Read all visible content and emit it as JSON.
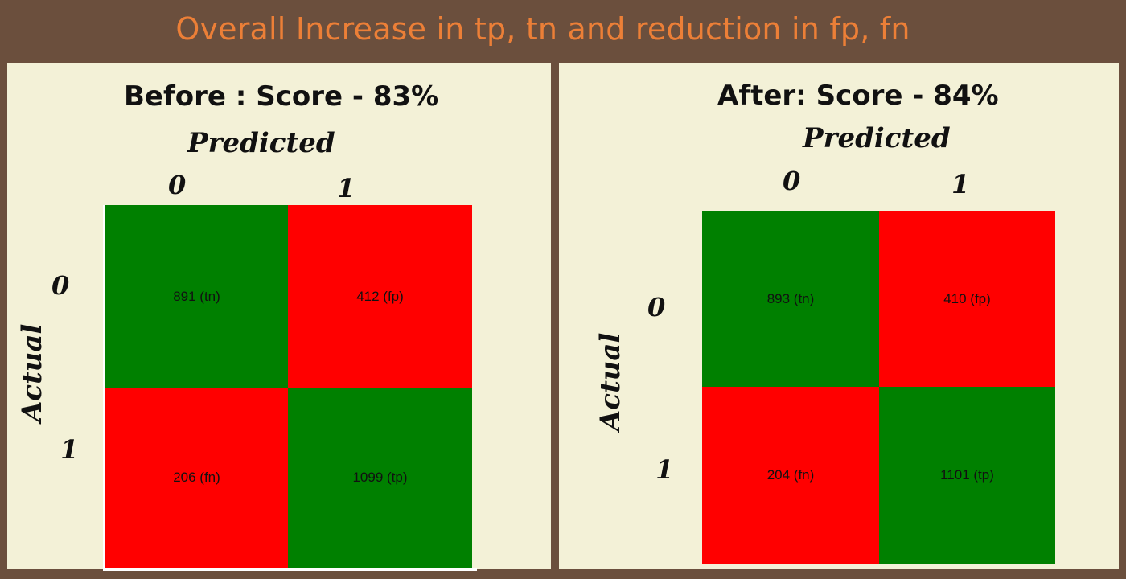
{
  "title": "Overall Increase in tp, tn and reduction in fp, fn",
  "colors": {
    "background": "#6b4f3d",
    "title": "#ec7f37",
    "panel": "#f3f1d7",
    "correct": "#008000",
    "incorrect": "#ff0000"
  },
  "chart_data": [
    {
      "type": "heatmap",
      "title": "Before : Score - 83%",
      "xlabel": "Predicted",
      "ylabel": "Actual",
      "x_ticks": [
        "0",
        "1"
      ],
      "y_ticks": [
        "0",
        "1"
      ],
      "cells": [
        [
          "891 (tn)",
          "412 (fp)"
        ],
        [
          "206 (fn)",
          "1099 (tp)"
        ]
      ],
      "values": [
        [
          891,
          412
        ],
        [
          206,
          1099
        ]
      ],
      "cell_colors": [
        [
          "#008000",
          "#ff0000"
        ],
        [
          "#ff0000",
          "#008000"
        ]
      ]
    },
    {
      "type": "heatmap",
      "title": "After: Score - 84%",
      "xlabel": "Predicted",
      "ylabel": "Actual",
      "x_ticks": [
        "0",
        "1"
      ],
      "y_ticks": [
        "0",
        "1"
      ],
      "cells": [
        [
          "893 (tn)",
          "410 (fp)"
        ],
        [
          "204 (fn)",
          "1101 (tp)"
        ]
      ],
      "values": [
        [
          893,
          410
        ],
        [
          204,
          1101
        ]
      ],
      "cell_colors": [
        [
          "#008000",
          "#ff0000"
        ],
        [
          "#ff0000",
          "#008000"
        ]
      ]
    }
  ]
}
